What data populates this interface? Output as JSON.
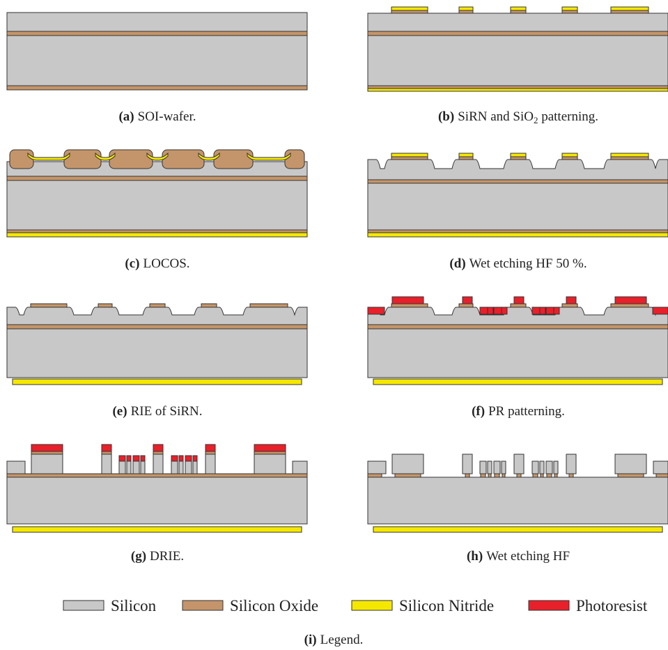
{
  "panels": [
    {
      "label": "(a)",
      "text": "SOI-wafer."
    },
    {
      "label": "(b)",
      "text": "SiRN and SiO",
      "subscript": "2",
      "text_after": " patterning."
    },
    {
      "label": "(c)",
      "text": "LOCOS."
    },
    {
      "label": "(d)",
      "text": "Wet etching HF 50 %."
    },
    {
      "label": "(e)",
      "text": "RIE of SiRN."
    },
    {
      "label": "(f)",
      "text": "PR patterning."
    },
    {
      "label": "(g)",
      "text": "DRIE."
    },
    {
      "label": "(h)",
      "text": "Wet etching HF"
    }
  ],
  "legend": {
    "items": [
      "Silicon",
      "Silicon Oxide",
      "Silicon Nitride",
      "Photoresist"
    ],
    "caption": {
      "label": "(i)",
      "text": "Legend."
    }
  }
}
